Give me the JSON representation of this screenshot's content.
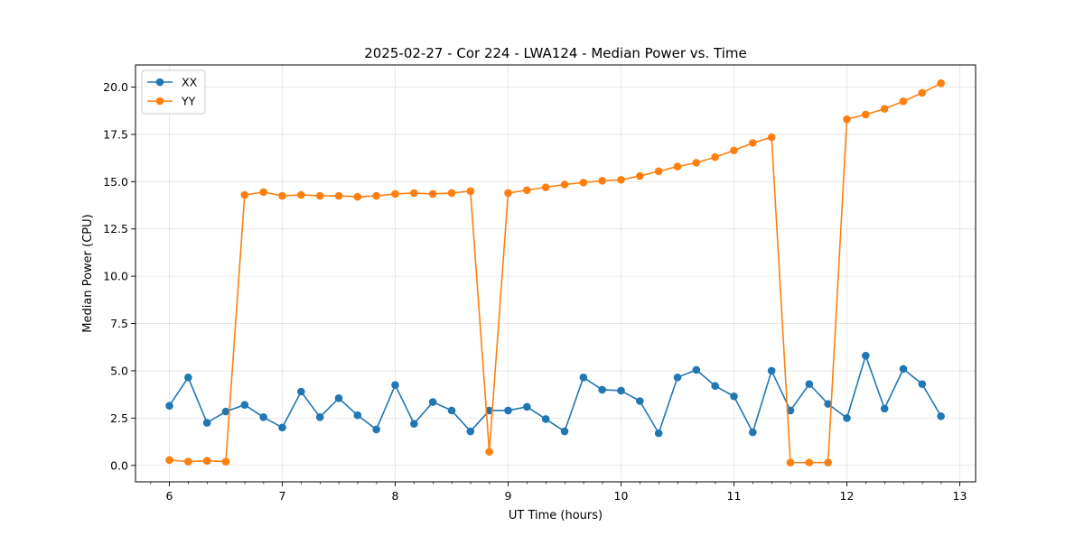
{
  "chart_data": {
    "type": "line",
    "title": "2025-02-27 - Cor 224 - LWA124 - Median Power vs. Time",
    "xlabel": "UT Time (hours)",
    "ylabel": "Median Power (CPU)",
    "xlim": [
      5.7,
      13.14
    ],
    "ylim": [
      -0.87,
      21.17
    ],
    "x_ticks": [
      6,
      7,
      8,
      9,
      10,
      11,
      12,
      13
    ],
    "x_tick_labels": [
      "6",
      "7",
      "8",
      "9",
      "10",
      "11",
      "12",
      "13"
    ],
    "x_minor_step": 0.1667,
    "y_ticks": [
      0,
      2.5,
      5,
      7.5,
      10,
      12.5,
      15,
      17.5,
      20
    ],
    "y_tick_labels": [
      "0.0",
      "2.5",
      "5.0",
      "7.5",
      "10.0",
      "12.5",
      "15.0",
      "17.5",
      "20.0"
    ],
    "grid": true,
    "legend_position": "upper-left",
    "x": [
      6.0,
      6.1667,
      6.3333,
      6.5,
      6.6667,
      6.8333,
      7.0,
      7.1667,
      7.3333,
      7.5,
      7.6667,
      7.8333,
      8.0,
      8.1667,
      8.3333,
      8.5,
      8.6667,
      8.8333,
      9.0,
      9.1667,
      9.3333,
      9.5,
      9.6667,
      9.8333,
      10.0,
      10.1667,
      10.3333,
      10.5,
      10.6667,
      10.8333,
      11.0,
      11.1667,
      11.3333,
      11.5,
      11.6667,
      11.8333,
      12.0,
      12.1667,
      12.3333,
      12.5,
      12.6667,
      12.8333
    ],
    "series": [
      {
        "name": "XX",
        "color": "#1f77b4",
        "values": [
          3.15,
          4.65,
          2.25,
          2.85,
          3.2,
          2.55,
          2.0,
          3.9,
          2.55,
          3.55,
          2.65,
          1.9,
          4.25,
          2.2,
          3.35,
          2.9,
          1.8,
          2.9,
          2.9,
          3.1,
          2.45,
          1.8,
          4.65,
          4.0,
          3.95,
          3.4,
          1.7,
          4.65,
          5.05,
          4.2,
          3.65,
          1.75,
          5.0,
          2.9,
          4.3,
          3.25,
          2.5,
          5.8,
          3.0,
          5.1,
          4.3,
          2.6
        ]
      },
      {
        "name": "YY",
        "color": "#ff7f0e",
        "values": [
          0.28,
          0.2,
          0.24,
          0.2,
          14.3,
          14.45,
          14.25,
          14.3,
          14.25,
          14.25,
          14.2,
          14.25,
          14.35,
          14.4,
          14.35,
          14.4,
          14.5,
          0.72,
          14.4,
          14.55,
          14.7,
          14.85,
          14.95,
          15.05,
          15.1,
          15.3,
          15.55,
          15.8,
          16.0,
          16.3,
          16.65,
          17.05,
          17.35,
          0.15,
          0.15,
          0.15,
          18.3,
          18.55,
          18.85,
          19.25,
          19.7,
          20.2
        ]
      }
    ]
  }
}
